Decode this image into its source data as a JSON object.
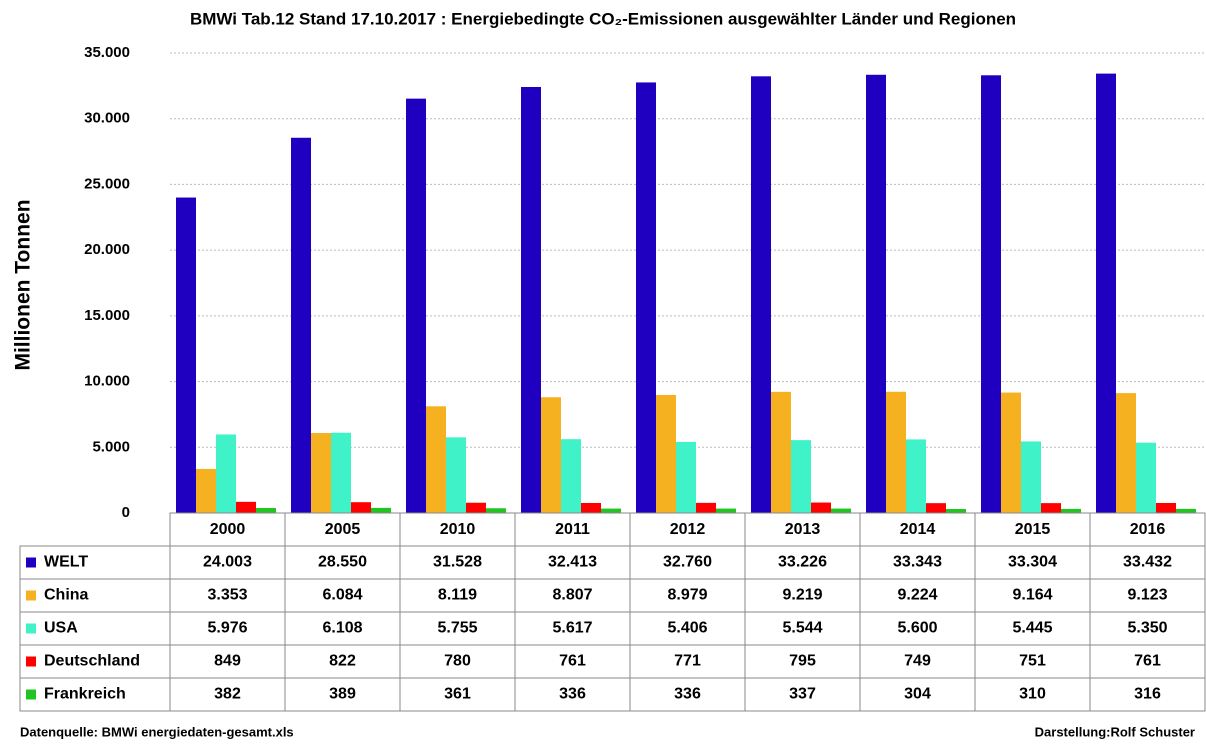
{
  "chart_data": {
    "type": "bar",
    "title": "BMWi Tab.12  Stand 17.10.2017 :  Energiebedingte CO₂-Emissionen ausgewählter Länder und Regionen",
    "y_label": "Millionen   Tonnen",
    "source": "Datenquelle:  BMWi  energiedaten-gesamt.xls",
    "credit": "Darstellung:Rolf Schuster",
    "categories": [
      "2000",
      "2005",
      "2010",
      "2011",
      "2012",
      "2013",
      "2014",
      "2015",
      "2016"
    ],
    "series": [
      {
        "name": "WELT",
        "color": "#2000c0",
        "values": [
          24003,
          28550,
          31528,
          32413,
          32760,
          33226,
          33343,
          33304,
          33432
        ],
        "value_labels": [
          "24.003",
          "28.550",
          "31.528",
          "32.413",
          "32.760",
          "33.226",
          "33.343",
          "33.304",
          "33.432"
        ]
      },
      {
        "name": "China",
        "color": "#f5b120",
        "values": [
          3353,
          6084,
          8119,
          8807,
          8979,
          9219,
          9224,
          9164,
          9123
        ],
        "value_labels": [
          "3.353",
          "6.084",
          "8.119",
          "8.807",
          "8.979",
          "9.219",
          "9.224",
          "9.164",
          "9.123"
        ]
      },
      {
        "name": "USA",
        "color": "#40f2c8",
        "values": [
          5976,
          6108,
          5755,
          5617,
          5406,
          5544,
          5600,
          5445,
          5350
        ],
        "value_labels": [
          "5.976",
          "6.108",
          "5.755",
          "5.617",
          "5.406",
          "5.544",
          "5.600",
          "5.445",
          "5.350"
        ]
      },
      {
        "name": "Deutschland",
        "color": "#ff0000",
        "values": [
          849,
          822,
          780,
          761,
          771,
          795,
          749,
          751,
          761
        ]
      },
      {
        "name": "Frankreich",
        "color": "#22c422",
        "values": [
          382,
          389,
          361,
          336,
          336,
          337,
          304,
          310,
          316
        ]
      }
    ],
    "ylim": [
      0,
      35000
    ],
    "yticks": [
      0,
      {
        "value": 5000,
        "label": "5.000"
      },
      {
        "value": 10000,
        "label": "10.000"
      },
      {
        "value": 15000,
        "label": "15.000"
      },
      {
        "value": 20000,
        "label": "20.000"
      },
      {
        "value": 25000,
        "label": "25.000"
      },
      {
        "value": 30000,
        "label": "30.000"
      },
      {
        "value": 35000,
        "label": "35.000"
      }
    ],
    "grid": true
  }
}
